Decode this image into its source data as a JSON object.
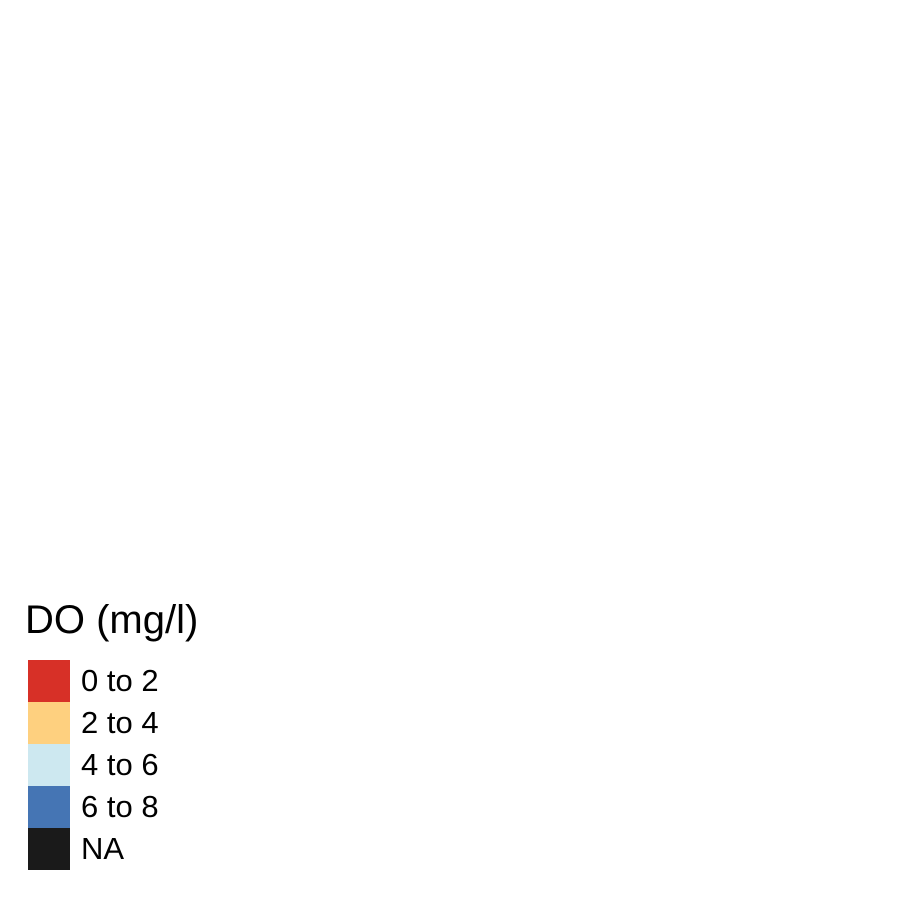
{
  "legend": {
    "title": "DO (mg/l)",
    "items": [
      {
        "label": "0 to 2",
        "color": "#d73027"
      },
      {
        "label": "2 to 4",
        "color": "#fed07f"
      },
      {
        "label": "4 to 6",
        "color": "#cde8f0"
      },
      {
        "label": "6 to 8",
        "color": "#4575b4"
      },
      {
        "label": "NA",
        "color": "#1a1a1a"
      }
    ]
  }
}
